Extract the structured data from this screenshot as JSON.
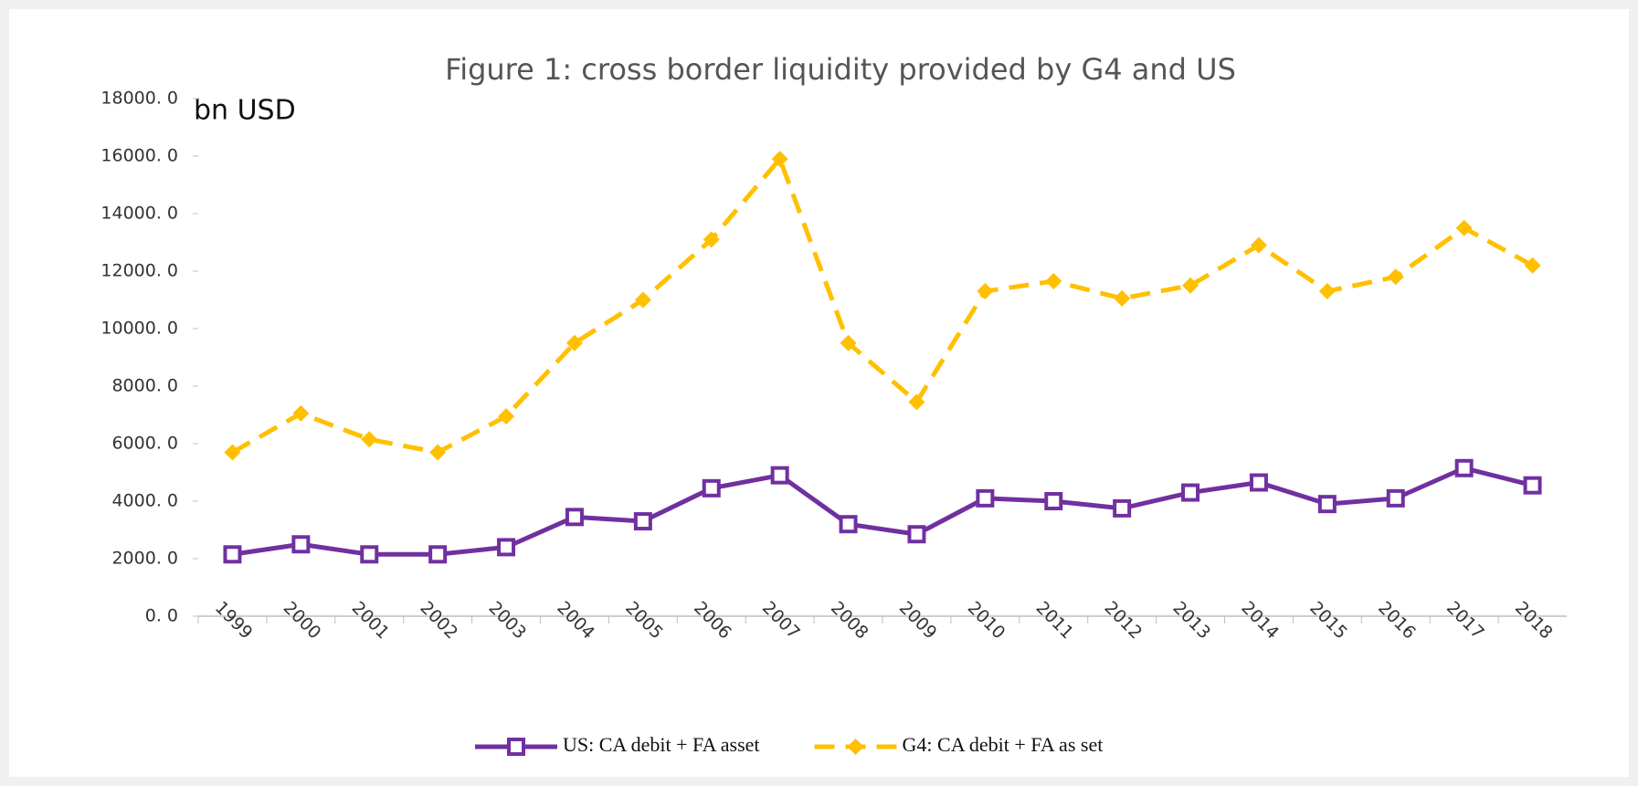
{
  "chart_data": {
    "type": "line",
    "title": "Figure 1: cross border liquidity provided by G4 and US",
    "y_unit": "bn USD",
    "categories": [
      "1999",
      "2000",
      "2001",
      "2002",
      "2003",
      "2004",
      "2005",
      "2006",
      "2007",
      "2008",
      "2009",
      "2010",
      "2011",
      "2012",
      "2013",
      "2014",
      "2015",
      "2016",
      "2017",
      "2018"
    ],
    "series": [
      {
        "name": "US: CA debit + FA asset",
        "color": "#7030a0",
        "dash": false,
        "marker": "square",
        "values": [
          2150,
          2500,
          2150,
          2150,
          2400,
          3450,
          3300,
          4450,
          4900,
          3200,
          2850,
          4100,
          4000,
          3750,
          4300,
          4650,
          3900,
          4100,
          5150,
          4550
        ]
      },
      {
        "name": "G4: CA debit + FA as set",
        "color": "#ffc000",
        "dash": true,
        "marker": "diamond",
        "values": [
          5700,
          7050,
          6150,
          5700,
          6950,
          9500,
          11000,
          13100,
          15900,
          9500,
          7450,
          11300,
          11650,
          11050,
          11500,
          12900,
          11300,
          11800,
          13500,
          12200
        ]
      }
    ],
    "ylim": [
      0,
      18000
    ],
    "yticks": [
      {
        "value": 0,
        "label": "0. 0"
      },
      {
        "value": 2000,
        "label": "2000. 0"
      },
      {
        "value": 4000,
        "label": "4000. 0"
      },
      {
        "value": 6000,
        "label": "6000. 0"
      },
      {
        "value": 8000,
        "label": "8000. 0"
      },
      {
        "value": 10000,
        "label": "10000. 0"
      },
      {
        "value": 12000,
        "label": "12000. 0"
      },
      {
        "value": 14000,
        "label": "14000. 0"
      },
      {
        "value": 16000,
        "label": "16000. 0"
      },
      {
        "value": 18000,
        "label": "18000. 0"
      }
    ],
    "grid": false,
    "legend": "bottom"
  }
}
